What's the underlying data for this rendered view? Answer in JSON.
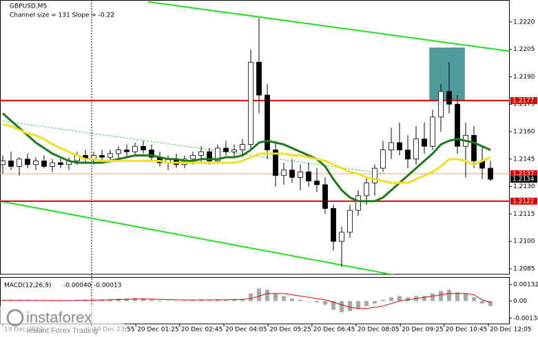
{
  "chart_data": {
    "type": "candlestick",
    "title": "GBPUSD,M5",
    "subtitle": "Channel size = 131 Slope = -0.22",
    "watermark": {
      "brand": "instaforex",
      "tagline": "Instant Forex Trading"
    },
    "xlim": [
      -0.3333,
      61.3333
    ],
    "ylim": [
      1.2082,
      1.2232
    ],
    "yticks": [
      {
        "value": 1.222,
        "label": "1.2220"
      },
      1.2205,
      {
        "value": 1.219,
        "label": "1.2190"
      },
      1.2175,
      {
        "value": 1.216,
        "label": "1.2160"
      },
      1.2145,
      {
        "value": 1.213,
        "label": "1.2130"
      },
      1.2115,
      {
        "value": 1.21,
        "label": "1.2100"
      },
      1.2085
    ],
    "xticks": [
      {
        "value": 0,
        "label": "19 Dec 2022"
      },
      {
        "value": 10.75,
        "label": "19 Dec 23:55"
      },
      {
        "value": 16.1,
        "label": "20 Dec 01:25"
      },
      {
        "value": 21.4,
        "label": "20 Dec 02:45"
      },
      {
        "value": 26.75,
        "label": "20 Dec 04:05"
      },
      {
        "value": 32.1,
        "label": "20 Dec 05:25"
      },
      {
        "value": 37.4,
        "label": "20 Dec 06:45"
      },
      {
        "value": 42.75,
        "label": "20 Dec 08:05"
      },
      {
        "value": 48.1,
        "label": "20 Dec 09:25"
      },
      {
        "value": 53.4,
        "label": "20 Dec 10:45"
      },
      {
        "value": 58.75,
        "label": "20 Dec 12:05"
      }
    ],
    "bull_color": "#ffffff",
    "bear_color": "#000000",
    "open": [
      1.2142,
      1.2144,
      1.2141,
      1.2145,
      1.2142,
      1.2144,
      1.2141,
      1.2143,
      1.2142,
      1.2144,
      1.2147,
      1.2145,
      1.2147,
      1.2146,
      1.2148,
      1.215,
      1.2149,
      1.2152,
      1.215,
      1.2146,
      1.2143,
      1.2145,
      1.2142,
      1.2145,
      1.2147,
      1.2149,
      1.2144,
      1.2151,
      1.2149,
      1.215,
      1.2153,
      1.2198,
      1.218,
      1.215,
      1.2136,
      1.2139,
      1.2135,
      1.2138,
      1.2133,
      1.2131,
      1.2118,
      1.21,
      1.2105,
      1.2117,
      1.2125,
      1.2132,
      1.214,
      1.215,
      1.2154,
      1.215,
      1.2145,
      1.2156,
      1.2152,
      1.2168,
      1.2182,
      1.2175,
      1.2152,
      1.2158,
      1.2144,
      1.214
    ],
    "high": [
      1.2147,
      1.2149,
      1.2146,
      1.2148,
      1.2146,
      1.2147,
      1.2145,
      1.2146,
      1.2146,
      1.2149,
      1.215,
      1.2149,
      1.215,
      1.215,
      1.2152,
      1.2153,
      1.2154,
      1.2155,
      1.2153,
      1.2149,
      1.2147,
      1.2148,
      1.2147,
      1.2149,
      1.2152,
      1.2151,
      1.2153,
      1.2155,
      1.2153,
      1.2156,
      1.2205,
      1.2222,
      1.2186,
      1.2155,
      1.2143,
      1.2145,
      1.2142,
      1.2143,
      1.214,
      1.2135,
      1.212,
      1.2108,
      1.212,
      1.2128,
      1.2135,
      1.2142,
      1.2155,
      1.2162,
      1.2165,
      1.2158,
      1.2163,
      1.2165,
      1.2172,
      1.2186,
      1.2198,
      1.218,
      1.2165,
      1.2163,
      1.2152,
      1.2144
    ],
    "low": [
      1.2137,
      1.2139,
      1.2136,
      1.214,
      1.2139,
      1.214,
      1.2138,
      1.214,
      1.2139,
      1.2142,
      1.2143,
      1.2142,
      1.2144,
      1.2143,
      1.2145,
      1.2146,
      1.2147,
      1.2148,
      1.2144,
      1.2141,
      1.2139,
      1.214,
      1.214,
      1.2142,
      1.2143,
      1.2142,
      1.2143,
      1.2147,
      1.2146,
      1.2147,
      1.215,
      1.217,
      1.2145,
      1.213,
      1.2131,
      1.2132,
      1.2128,
      1.213,
      1.2127,
      1.2115,
      1.2095,
      1.2086,
      1.2102,
      1.2114,
      1.212,
      1.2125,
      1.2138,
      1.2145,
      1.2147,
      1.214,
      1.2142,
      1.2148,
      1.215,
      1.216,
      1.217,
      1.2148,
      1.2135,
      1.214,
      1.2134,
      1.2133
    ],
    "close": [
      1.2144,
      1.2141,
      1.2145,
      1.2142,
      1.2144,
      1.2141,
      1.2143,
      1.2142,
      1.2144,
      1.2147,
      1.2145,
      1.2147,
      1.2146,
      1.2148,
      1.215,
      1.2149,
      1.2152,
      1.215,
      1.2146,
      1.2143,
      1.2145,
      1.2142,
      1.2145,
      1.2147,
      1.2149,
      1.2144,
      1.2151,
      1.2149,
      1.215,
      1.2153,
      1.2198,
      1.218,
      1.215,
      1.2136,
      1.2139,
      1.2135,
      1.2138,
      1.2133,
      1.2131,
      1.2118,
      1.21,
      1.2105,
      1.2117,
      1.2125,
      1.2132,
      1.214,
      1.215,
      1.2154,
      1.215,
      1.2145,
      1.2156,
      1.2152,
      1.2168,
      1.2182,
      1.2175,
      1.2152,
      1.2158,
      1.2144,
      1.214,
      1.2134
    ],
    "series": [
      {
        "color": "#1a7a1a",
        "width": 3,
        "values": [
          1.217,
          1.2166,
          1.2162,
          1.2158,
          1.2154,
          1.2151,
          1.2148,
          1.2146,
          1.2144,
          1.2143,
          1.2143,
          1.2143,
          1.2143,
          1.2144,
          1.2145,
          1.2146,
          1.2147,
          1.2147,
          1.2147,
          1.2146,
          1.2145,
          1.2145,
          1.2144,
          1.2144,
          1.2145,
          1.2145,
          1.2145,
          1.2146,
          1.2146,
          1.2147,
          1.215,
          1.2154,
          1.2155,
          1.2154,
          1.2153,
          1.2151,
          1.2149,
          1.2147,
          1.2145,
          1.2141,
          1.2134,
          1.2128,
          1.2124,
          1.2122,
          1.2122,
          1.2122,
          1.2124,
          1.2128,
          1.2132,
          1.2136,
          1.214,
          1.2144,
          1.2148,
          1.2153,
          1.2155,
          1.2156,
          1.2155,
          1.2154,
          1.2152,
          1.215
        ]
      },
      {
        "color": "#f0e020",
        "width": 3,
        "values": [
          1.2164,
          1.2163,
          1.2161,
          1.2159,
          1.2158,
          1.2156,
          1.2153,
          1.2151,
          1.2149,
          1.2147,
          1.2145,
          1.2145,
          1.2144,
          1.2144,
          1.2144,
          1.2144,
          1.2144,
          1.2144,
          1.2144,
          1.2144,
          1.2143,
          1.2143,
          1.2143,
          1.2143,
          1.2143,
          1.2143,
          1.2143,
          1.2143,
          1.2143,
          1.2144,
          1.2146,
          1.2148,
          1.2148,
          1.2148,
          1.2148,
          1.2147,
          1.2147,
          1.2146,
          1.2145,
          1.2144,
          1.2142,
          1.214,
          1.2138,
          1.2137,
          1.2135,
          1.2134,
          1.2133,
          1.2132,
          1.2132,
          1.2132,
          1.2134,
          1.2136,
          1.2138,
          1.2141,
          1.2145,
          1.2145,
          1.2144,
          1.2142,
          1.2144,
          1.2146
        ]
      }
    ],
    "trendlines": [
      {
        "color": "#22dd22",
        "width": 2,
        "x": [
          17.6,
          61.3
        ],
        "y": [
          1.2231,
          1.2204
        ]
      },
      {
        "color": "#22dd22",
        "width": 2,
        "x": [
          -0.33,
          49.3
        ],
        "y": [
          1.2122,
          1.208
        ]
      },
      {
        "color": "#55cc55",
        "width": 1,
        "dash": true,
        "x": [
          -0.33,
          46.3
        ],
        "y": [
          1.2166,
          1.2137
        ]
      }
    ],
    "levels": [
      {
        "value": 1.2177,
        "color": "#e00000",
        "label_color": "#e00000"
      },
      {
        "value": 1.2122,
        "color": "#e00000",
        "label_color": "#e00000"
      },
      {
        "value": 1.2137,
        "color": "#f0a080",
        "label_color": "#e00000"
      },
      {
        "value": 1.2134,
        "color": null,
        "label_color": "#000000"
      }
    ],
    "zone": {
      "x": [
        51.6,
        55.9
      ],
      "y": [
        1.2206,
        1.2177
      ],
      "color": "#4e9b9b"
    },
    "macd": {
      "label": "MACD(12,26,9)",
      "readout_values": [
        -0.0004,
        -0.00013
      ],
      "readout_labels": [
        "-0.00040",
        "-0.00013"
      ],
      "ylim": [
        -0.00183,
        0.00192
      ],
      "yticks": [
        0.00132,
        {
          "value": 0,
          "label": "0.00"
        },
        -0.00138
      ],
      "hist_color": "#a8a8a8",
      "signal_color": "#e00000",
      "histogram": [
        0.0001,
        5e-05,
        8e-05,
        3e-05,
        4e-05,
        0,
        2e-05,
        0,
        3e-05,
        8e-05,
        0.0001,
        0.00012,
        0.00012,
        0.00015,
        0.0002,
        0.0002,
        0.00025,
        0.00022,
        0.00012,
        5e-05,
        3e-05,
        0,
        4e-05,
        8e-05,
        0.0001,
        5e-05,
        0.0001,
        0.00012,
        0.00012,
        0.00015,
        0.0006,
        0.001,
        0.0009,
        0.0006,
        0.0004,
        0.0002,
        0.0001,
        0,
        -0.0001,
        -0.0003,
        -0.0007,
        -0.0009,
        -0.0008,
        -0.0006,
        -0.0004,
        -0.0002,
        0.0001,
        0.0003,
        0.0004,
        0.0003,
        0.0004,
        0.0004,
        0.0006,
        0.0008,
        0.0009,
        0.0007,
        0.0006,
        0.0003,
        -0.0002,
        -0.0004
      ],
      "signal": [
        5e-05,
        6e-05,
        6e-05,
        6e-05,
        5e-05,
        5e-05,
        4e-05,
        4e-05,
        4e-05,
        5e-05,
        6e-05,
        7e-05,
        8e-05,
        0.0001,
        0.00012,
        0.00014,
        0.00016,
        0.00017,
        0.00016,
        0.00014,
        0.00012,
        0.0001,
        9e-05,
        9e-05,
        9e-05,
        9e-05,
        0.0001,
        0.00011,
        0.00012,
        0.00013,
        0.0002,
        0.0004,
        0.0006,
        0.0006,
        0.0006,
        0.0005,
        0.0004,
        0.0003,
        0.0002,
        0.0001,
        -0.0001,
        -0.0003,
        -0.0005,
        -0.0006,
        -0.0006,
        -0.0005,
        -0.0004,
        -0.0002,
        0,
        0.0001,
        0.0002,
        0.0003,
        0.0004,
        0.0005,
        0.0006,
        0.0006,
        0.0006,
        0.0005,
        0.0001,
        -0.00013
      ]
    }
  }
}
